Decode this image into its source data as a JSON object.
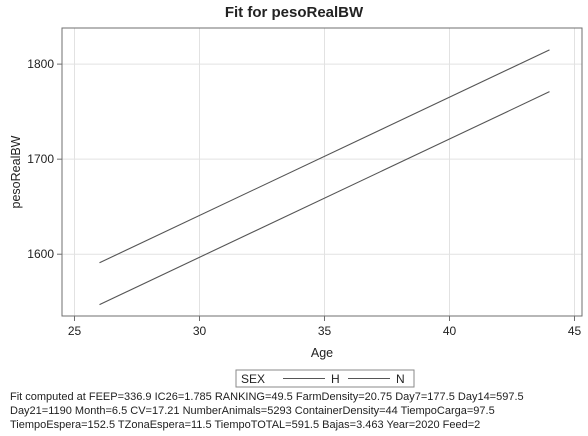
{
  "chart_data": {
    "type": "line",
    "title": "Fit for pesoRealBW",
    "xlabel": "Age",
    "ylabel": "pesoRealBW",
    "xlim": [
      24.5,
      45.3
    ],
    "ylim": [
      1535,
      1838
    ],
    "xticks": [
      25,
      30,
      35,
      40,
      45
    ],
    "yticks": [
      1600,
      1700,
      1800
    ],
    "grid": true,
    "legend": {
      "title": "SEX",
      "placement": "bottom"
    },
    "line_color": "#555555",
    "series": [
      {
        "name": "H",
        "x": [
          26,
          44
        ],
        "y": [
          1591,
          1815
        ]
      },
      {
        "name": "N",
        "x": [
          26,
          44
        ],
        "y": [
          1547,
          1771
        ]
      }
    ]
  },
  "footnote": [
    "Fit computed at FEEP=336.9 IC26=1.785 RANKING=49.5 FarmDensity=20.75 Day7=177.5 Day14=597.5",
    "Day21=1190 Month=6.5 CV=17.21 NumberAnimals=5293 ContainerDensity=44 TiempoCarga=97.5",
    "TiempoEspera=152.5 TZonaEspera=11.5 TiempoTOTAL=591.5 Bajas=3.463 Year=2020 Feed=2"
  ]
}
